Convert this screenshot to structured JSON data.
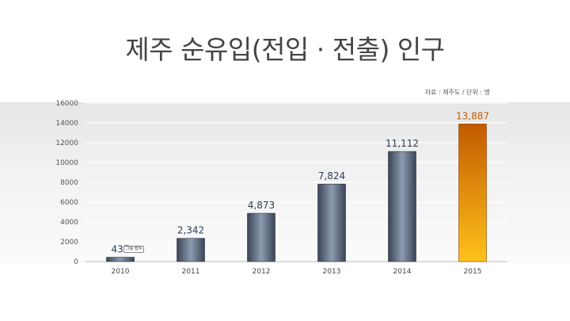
{
  "title": "제주 순유입(전입 · 전출) 인구",
  "source_note": "자료 : 제주도 / 단위 : 명",
  "figure_tag": "그림 캡쳐",
  "colors": {
    "bar_dark": "#3a4556",
    "bar_light": "#8d9bb0",
    "highlight_dark": "#c25a00",
    "highlight_light": "#ffc21a",
    "label": "#2c3e55",
    "highlight_label": "#c65a00"
  },
  "chart_data": {
    "type": "bar",
    "categories": [
      "2010",
      "2011",
      "2012",
      "2013",
      "2014",
      "2015"
    ],
    "values": [
      437,
      2342,
      4873,
      7824,
      11112,
      13887
    ],
    "data_labels": [
      "437",
      "2,342",
      "4,873",
      "7,824",
      "11,112",
      "13,887"
    ],
    "highlight_index": 5,
    "ylim": [
      0,
      16000
    ],
    "yticks": [
      0,
      2000,
      4000,
      6000,
      8000,
      10000,
      12000,
      14000,
      16000
    ],
    "ytick_labels": [
      "0",
      "2000",
      "4000",
      "6000",
      "8000",
      "10000",
      "12000",
      "14000",
      "16000"
    ],
    "grid": true,
    "xlabel": "",
    "ylabel": ""
  }
}
